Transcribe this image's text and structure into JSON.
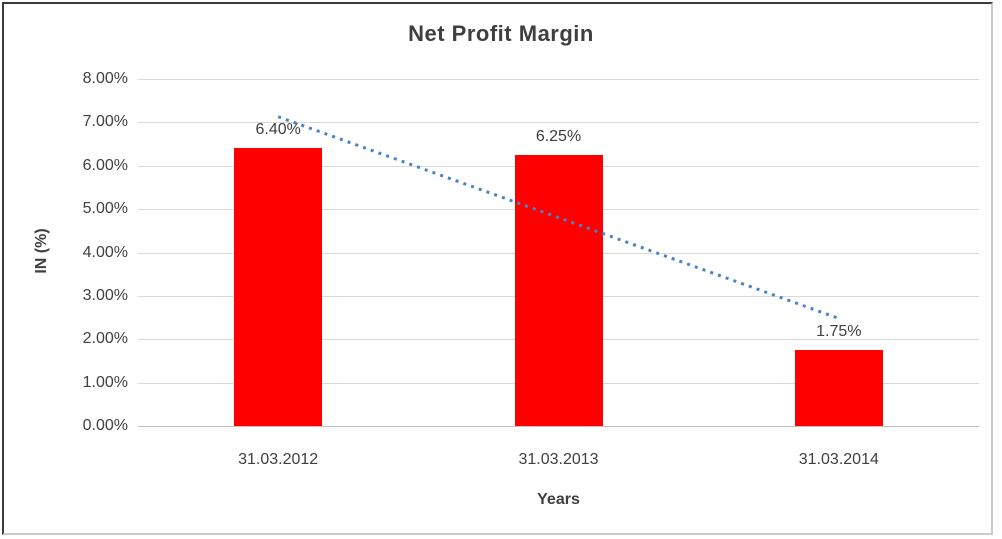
{
  "chart_data": {
    "type": "bar",
    "title": "Net Profit Margin",
    "categories": [
      "31.03.2012",
      "31.03.2013",
      "31.03.2014"
    ],
    "values": [
      6.4,
      6.25,
      1.75
    ],
    "data_labels": [
      "6.40%",
      "6.25%",
      "1.75%"
    ],
    "xlabel": "Years",
    "ylabel": "IN (%)",
    "ylim": [
      0,
      8
    ],
    "ytick_step": 1,
    "ytick_labels": [
      "0.00%",
      "1.00%",
      "2.00%",
      "3.00%",
      "4.00%",
      "5.00%",
      "6.00%",
      "7.00%",
      "8.00%"
    ],
    "grid": "horizontal",
    "legend": "none",
    "bar_color": "#ff0000",
    "text_color": "#404040",
    "gridline_color": "#d9d9d9",
    "axis_line_color": "#bfbfbf",
    "trendline": {
      "type": "linear",
      "style": "dotted",
      "color": "#4a82c3",
      "start_value": 7.13,
      "end_value": 2.48
    }
  }
}
